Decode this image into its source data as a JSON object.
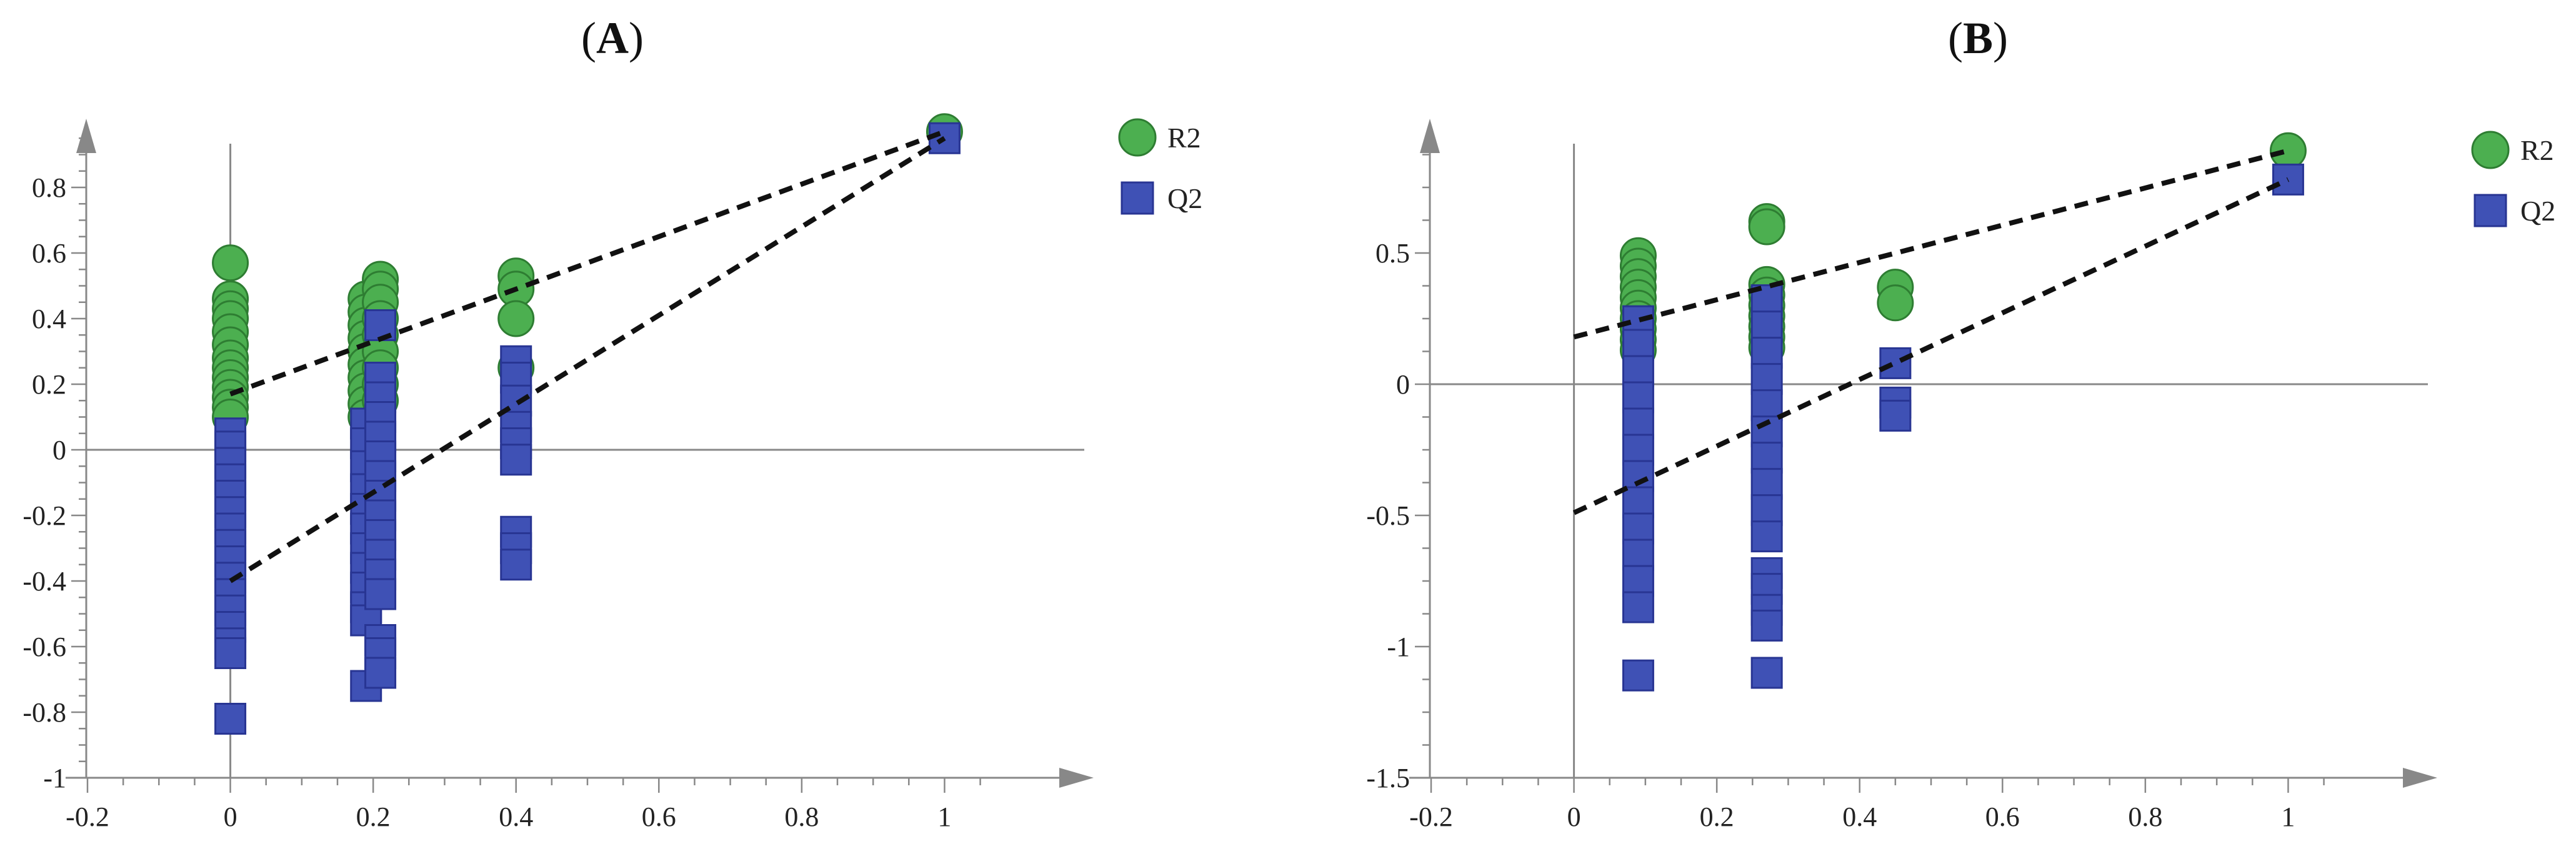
{
  "chart_data": [
    {
      "type": "scatter",
      "panel_label": "A",
      "xlim": [
        -0.2,
        1.2
      ],
      "ylim": [
        -1.0,
        1.0
      ],
      "x_ticks": [
        -0.2,
        0,
        0.2,
        0.4,
        0.6,
        0.8,
        1
      ],
      "y_ticks": [
        -1,
        -0.8,
        -0.6,
        -0.4,
        -0.2,
        0,
        0.2,
        0.4,
        0.6,
        0.8
      ],
      "x_tick_labels": [
        "-0.2",
        "0",
        "0.2",
        "0.4",
        "0.6",
        "0.8",
        "1"
      ],
      "y_tick_labels": [
        "-1",
        "-0.8",
        "-0.6",
        "-0.4",
        "-0.2",
        "0",
        "0.2",
        "0.4",
        "0.6",
        "0.8"
      ],
      "legend": [
        "R2",
        "Q2"
      ],
      "legend_position": "top-right",
      "colors": {
        "R2": "#4caf50",
        "Q2": "#3f51b5"
      },
      "series": [
        {
          "name": "R2",
          "marker": "circle",
          "points": [
            [
              0.0,
              0.57
            ],
            [
              0.0,
              0.46
            ],
            [
              0.0,
              0.43
            ],
            [
              0.0,
              0.4
            ],
            [
              0.0,
              0.36
            ],
            [
              0.0,
              0.32
            ],
            [
              0.0,
              0.28
            ],
            [
              0.0,
              0.25
            ],
            [
              0.0,
              0.22
            ],
            [
              0.0,
              0.19
            ],
            [
              0.0,
              0.16
            ],
            [
              0.0,
              0.13
            ],
            [
              0.0,
              0.1
            ],
            [
              0.19,
              0.46
            ],
            [
              0.19,
              0.42
            ],
            [
              0.19,
              0.38
            ],
            [
              0.19,
              0.34
            ],
            [
              0.19,
              0.3
            ],
            [
              0.19,
              0.26
            ],
            [
              0.19,
              0.22
            ],
            [
              0.19,
              0.18
            ],
            [
              0.19,
              0.14
            ],
            [
              0.19,
              0.1
            ],
            [
              0.21,
              0.52
            ],
            [
              0.21,
              0.49
            ],
            [
              0.21,
              0.45
            ],
            [
              0.21,
              0.4
            ],
            [
              0.21,
              0.35
            ],
            [
              0.21,
              0.3
            ],
            [
              0.21,
              0.25
            ],
            [
              0.21,
              0.2
            ],
            [
              0.21,
              0.15
            ],
            [
              0.4,
              0.53
            ],
            [
              0.4,
              0.49
            ],
            [
              0.4,
              0.4
            ],
            [
              0.4,
              0.25
            ],
            [
              1.0,
              0.97
            ]
          ]
        },
        {
          "name": "Q2",
          "marker": "square",
          "points": [
            [
              0.0,
              0.05
            ],
            [
              0.0,
              0.01
            ],
            [
              0.0,
              -0.04
            ],
            [
              0.0,
              -0.09
            ],
            [
              0.0,
              -0.14
            ],
            [
              0.0,
              -0.19
            ],
            [
              0.0,
              -0.24
            ],
            [
              0.0,
              -0.29
            ],
            [
              0.0,
              -0.34
            ],
            [
              0.0,
              -0.39
            ],
            [
              0.0,
              -0.44
            ],
            [
              0.0,
              -0.49
            ],
            [
              0.0,
              -0.54
            ],
            [
              0.0,
              -0.59
            ],
            [
              0.0,
              -0.62
            ],
            [
              0.0,
              -0.82
            ],
            [
              0.19,
              0.08
            ],
            [
              0.19,
              0.02
            ],
            [
              0.19,
              -0.05
            ],
            [
              0.19,
              -0.12
            ],
            [
              0.19,
              -0.18
            ],
            [
              0.19,
              -0.24
            ],
            [
              0.19,
              -0.3
            ],
            [
              0.19,
              -0.36
            ],
            [
              0.19,
              -0.42
            ],
            [
              0.19,
              -0.48
            ],
            [
              0.19,
              -0.52
            ],
            [
              0.19,
              -0.72
            ],
            [
              0.21,
              0.38
            ],
            [
              0.21,
              0.22
            ],
            [
              0.21,
              0.16
            ],
            [
              0.21,
              0.1
            ],
            [
              0.21,
              0.04
            ],
            [
              0.21,
              -0.02
            ],
            [
              0.21,
              -0.08
            ],
            [
              0.21,
              -0.14
            ],
            [
              0.21,
              -0.2
            ],
            [
              0.21,
              -0.26
            ],
            [
              0.21,
              -0.32
            ],
            [
              0.21,
              -0.38
            ],
            [
              0.21,
              -0.44
            ],
            [
              0.21,
              -0.58
            ],
            [
              0.21,
              -0.62
            ],
            [
              0.21,
              -0.68
            ],
            [
              0.4,
              0.27
            ],
            [
              0.4,
              0.22
            ],
            [
              0.4,
              0.15
            ],
            [
              0.4,
              0.07
            ],
            [
              0.4,
              0.02
            ],
            [
              0.4,
              -0.03
            ],
            [
              0.4,
              -0.25
            ],
            [
              0.4,
              -0.3
            ],
            [
              0.4,
              -0.35
            ],
            [
              1.0,
              0.95
            ]
          ]
        }
      ],
      "trend_lines": [
        {
          "name": "R2",
          "from": [
            0.0,
            0.17
          ],
          "to": [
            1.0,
            0.97
          ]
        },
        {
          "name": "Q2",
          "from": [
            0.0,
            -0.4
          ],
          "to": [
            1.0,
            0.95
          ]
        }
      ]
    },
    {
      "type": "scatter",
      "panel_label": "B",
      "xlim": [
        -0.2,
        1.2
      ],
      "ylim": [
        -1.5,
        1.0
      ],
      "x_ticks": [
        -0.2,
        0,
        0.2,
        0.4,
        0.6,
        0.8,
        1
      ],
      "y_ticks": [
        -1.5,
        -1,
        -0.5,
        0,
        0.5
      ],
      "x_tick_labels": [
        "-0.2",
        "0",
        "0.2",
        "0.4",
        "0.6",
        "0.8",
        "1"
      ],
      "y_tick_labels": [
        "-1.5",
        "-1",
        "-0.5",
        "0",
        "0.5"
      ],
      "legend": [
        "R2",
        "Q2"
      ],
      "legend_position": "top-right",
      "colors": {
        "R2": "#4caf50",
        "Q2": "#3f51b5"
      },
      "series": [
        {
          "name": "R2",
          "marker": "circle",
          "points": [
            [
              0.09,
              0.49
            ],
            [
              0.09,
              0.45
            ],
            [
              0.09,
              0.41
            ],
            [
              0.09,
              0.37
            ],
            [
              0.09,
              0.33
            ],
            [
              0.09,
              0.29
            ],
            [
              0.09,
              0.25
            ],
            [
              0.09,
              0.21
            ],
            [
              0.09,
              0.17
            ],
            [
              0.09,
              0.13
            ],
            [
              0.27,
              0.62
            ],
            [
              0.27,
              0.6
            ],
            [
              0.27,
              0.38
            ],
            [
              0.27,
              0.34
            ],
            [
              0.27,
              0.3
            ],
            [
              0.27,
              0.26
            ],
            [
              0.27,
              0.22
            ],
            [
              0.27,
              0.18
            ],
            [
              0.27,
              0.14
            ],
            [
              0.45,
              0.37
            ],
            [
              0.45,
              0.31
            ],
            [
              1.0,
              0.89
            ]
          ]
        },
        {
          "name": "Q2",
          "marker": "square",
          "points": [
            [
              0.09,
              0.24
            ],
            [
              0.09,
              0.15
            ],
            [
              0.09,
              0.05
            ],
            [
              0.09,
              -0.05
            ],
            [
              0.09,
              -0.15
            ],
            [
              0.09,
              -0.25
            ],
            [
              0.09,
              -0.35
            ],
            [
              0.09,
              -0.45
            ],
            [
              0.09,
              -0.55
            ],
            [
              0.09,
              -0.65
            ],
            [
              0.09,
              -0.75
            ],
            [
              0.09,
              -0.85
            ],
            [
              0.09,
              -1.11
            ],
            [
              0.27,
              0.32
            ],
            [
              0.27,
              0.22
            ],
            [
              0.27,
              0.12
            ],
            [
              0.27,
              0.02
            ],
            [
              0.27,
              -0.08
            ],
            [
              0.27,
              -0.18
            ],
            [
              0.27,
              -0.28
            ],
            [
              0.27,
              -0.38
            ],
            [
              0.27,
              -0.48
            ],
            [
              0.27,
              -0.58
            ],
            [
              0.27,
              -0.72
            ],
            [
              0.27,
              -0.78
            ],
            [
              0.27,
              -0.86
            ],
            [
              0.27,
              -0.92
            ],
            [
              0.27,
              -1.1
            ],
            [
              0.45,
              0.08
            ],
            [
              0.45,
              -0.07
            ],
            [
              0.45,
              -0.12
            ],
            [
              1.0,
              0.78
            ]
          ]
        }
      ],
      "trend_lines": [
        {
          "name": "R2",
          "from": [
            0.0,
            0.18
          ],
          "to": [
            1.0,
            0.89
          ]
        },
        {
          "name": "Q2",
          "from": [
            0.0,
            -0.49
          ],
          "to": [
            1.0,
            0.78
          ]
        }
      ]
    }
  ]
}
